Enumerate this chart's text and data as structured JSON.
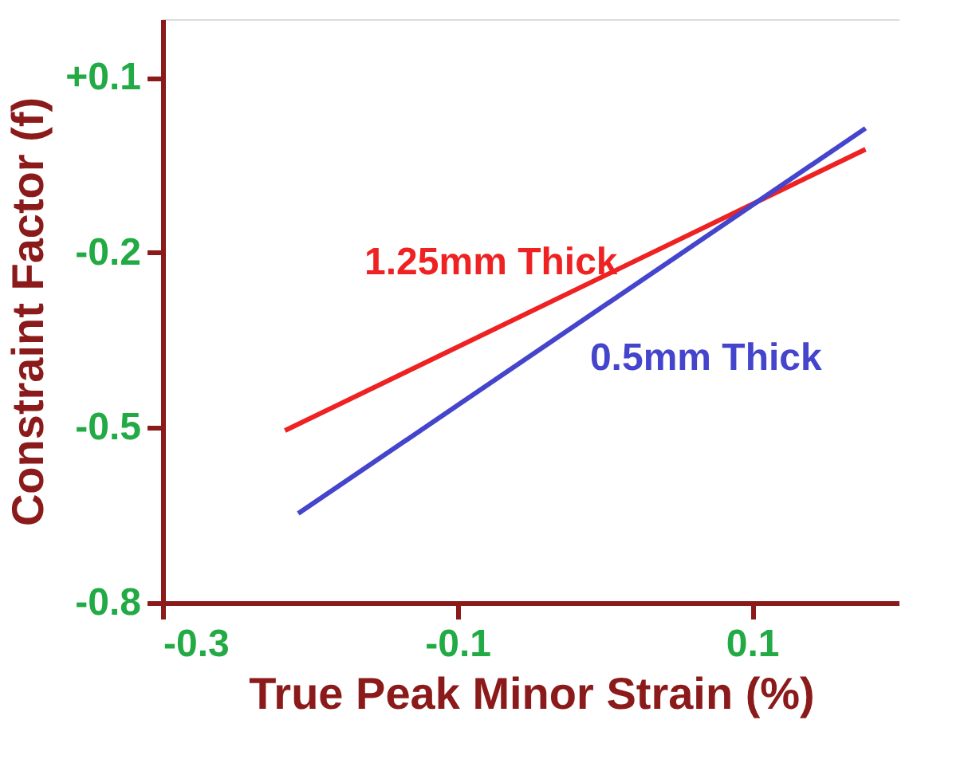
{
  "chart_data": {
    "type": "line",
    "xlabel": "True Peak Minor Strain (%)",
    "ylabel": "Constraint Factor (f)",
    "xlim": [
      -0.3,
      0.2
    ],
    "xticks": [
      -0.3,
      -0.1,
      0.1
    ],
    "ylim": [
      -0.8,
      0.2
    ],
    "yticks": [
      {
        "value": 0.1,
        "label": "+0.1"
      },
      -0.2,
      -0.5,
      -0.8
    ],
    "grid": false,
    "marker": "none",
    "line_style": "solid",
    "series": [
      {
        "name": "1.25mm Thick",
        "color": "#ee2222",
        "x": [
          -0.217,
          0.177
        ],
        "values": [
          -0.505,
          -0.023
        ]
      },
      {
        "name": "0.5mm Thick",
        "color": "#4444cc",
        "x": [
          -0.208,
          0.177
        ],
        "values": [
          -0.647,
          0.013
        ]
      }
    ]
  }
}
